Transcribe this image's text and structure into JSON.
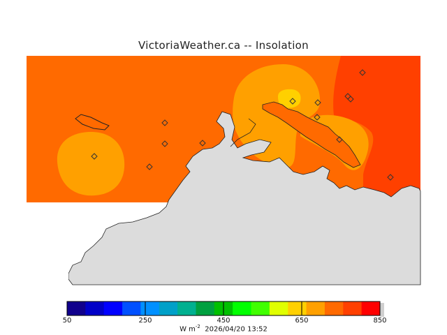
{
  "title": "VictoriaWeather.ca -- Insolation",
  "legend": {
    "ticks": [
      "50",
      "250",
      "450",
      "650",
      "850"
    ],
    "unit_main": "W m",
    "unit_exp": "-2",
    "timestamp": "2026/04/20 13:52",
    "colors": [
      "#10008c",
      "#0000c8",
      "#0000ff",
      "#0050ff",
      "#0090ff",
      "#00a0c8",
      "#00b090",
      "#00a040",
      "#00c000",
      "#00ff00",
      "#40ff00",
      "#e0ff00",
      "#ffd000",
      "#ffa000",
      "#ff6a00",
      "#ff4000",
      "#ff0000"
    ]
  },
  "map_colors": {
    "land_grey": "#dcdcdc",
    "field_orange": "#ff6a00",
    "warm_orange": "#ffa000",
    "hot_red": "#ff4000",
    "peak_yellow": "#ffd000"
  },
  "stations": [
    {
      "id": "st-1"
    },
    {
      "id": "st-2"
    },
    {
      "id": "st-3"
    },
    {
      "id": "st-4"
    },
    {
      "id": "st-5"
    },
    {
      "id": "st-6"
    },
    {
      "id": "st-7"
    },
    {
      "id": "st-8"
    },
    {
      "id": "st-9"
    },
    {
      "id": "st-10"
    },
    {
      "id": "st-11"
    },
    {
      "id": "st-12"
    },
    {
      "id": "st-13"
    }
  ]
}
